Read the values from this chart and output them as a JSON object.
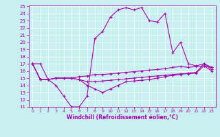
{
  "xlabel": "Windchill (Refroidissement éolien,°C)",
  "bg_color": "#c8f0f0",
  "line_color": "#aa00aa",
  "grid_color": "#ffffff",
  "ylim": [
    11,
    25
  ],
  "xlim": [
    -0.5,
    23.5
  ],
  "yticks": [
    11,
    12,
    13,
    14,
    15,
    16,
    17,
    18,
    19,
    20,
    21,
    22,
    23,
    24,
    25
  ],
  "xticks": [
    0,
    1,
    2,
    3,
    4,
    5,
    6,
    7,
    8,
    9,
    10,
    11,
    12,
    13,
    14,
    15,
    16,
    17,
    18,
    19,
    20,
    21,
    22,
    23
  ],
  "series": [
    {
      "x": [
        0,
        1,
        2,
        3,
        4,
        5,
        6,
        7,
        8,
        9,
        10,
        11,
        12,
        13,
        14,
        15,
        16,
        17,
        18,
        19,
        20,
        21,
        22,
        23
      ],
      "y": [
        17.0,
        17.0,
        14.8,
        14.0,
        12.5,
        11.0,
        11.0,
        12.5,
        20.5,
        21.5,
        23.5,
        24.5,
        24.8,
        24.5,
        24.8,
        23.0,
        22.8,
        24.0,
        18.5,
        20.0,
        17.0,
        16.7,
        17.0,
        16.2
      ]
    },
    {
      "x": [
        0,
        1,
        2,
        3,
        4,
        5,
        6,
        7,
        8,
        9,
        10,
        11,
        12,
        13,
        14,
        15,
        16,
        17,
        18,
        19,
        20,
        21,
        22,
        23
      ],
      "y": [
        17.0,
        14.8,
        14.8,
        15.0,
        15.0,
        15.0,
        15.2,
        15.3,
        15.5,
        15.5,
        15.6,
        15.7,
        15.8,
        15.9,
        16.0,
        16.1,
        16.2,
        16.3,
        16.5,
        16.6,
        16.5,
        16.6,
        16.7,
        16.5
      ]
    },
    {
      "x": [
        0,
        1,
        2,
        3,
        4,
        5,
        6,
        7,
        8,
        9,
        10,
        11,
        12,
        13,
        14,
        15,
        16,
        17,
        18,
        19,
        20,
        21,
        22,
        23
      ],
      "y": [
        17.0,
        14.8,
        14.8,
        15.0,
        15.0,
        15.0,
        14.8,
        14.5,
        14.5,
        14.6,
        14.7,
        14.8,
        14.9,
        15.0,
        15.1,
        15.2,
        15.3,
        15.4,
        15.5,
        15.6,
        15.6,
        15.7,
        16.7,
        16.0
      ]
    },
    {
      "x": [
        0,
        1,
        2,
        3,
        4,
        5,
        6,
        7,
        8,
        9,
        10,
        11,
        12,
        13,
        14,
        15,
        16,
        17,
        18,
        19,
        20,
        21,
        22,
        23
      ],
      "y": [
        17.0,
        14.8,
        14.8,
        15.0,
        15.0,
        15.0,
        14.8,
        14.0,
        13.5,
        13.0,
        13.5,
        14.0,
        14.5,
        14.6,
        14.7,
        14.8,
        15.0,
        15.2,
        15.4,
        15.5,
        15.7,
        15.8,
        17.0,
        16.5
      ]
    }
  ]
}
